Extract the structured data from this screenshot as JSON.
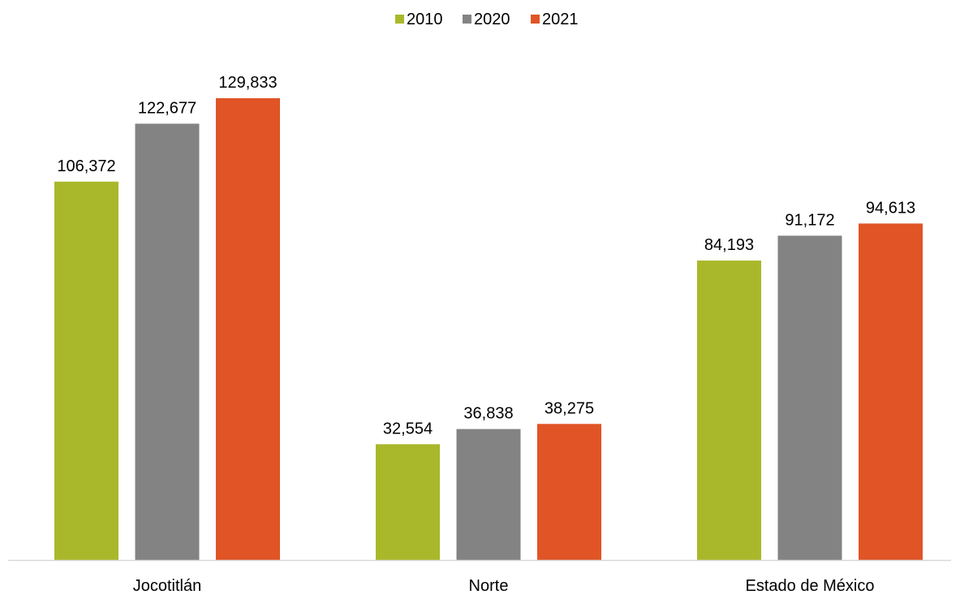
{
  "chart_data": {
    "type": "bar",
    "title": "",
    "xlabel": "",
    "ylabel": "",
    "categories": [
      "Jocotitlán",
      "Norte",
      "Estado de México"
    ],
    "series": [
      {
        "name": "2010",
        "color": "#A9B82A",
        "values": [
          106372,
          32554,
          84193
        ],
        "labels": [
          "106,372",
          "32,554",
          "84,193"
        ]
      },
      {
        "name": "2020",
        "color": "#838383",
        "values": [
          122677,
          36838,
          91172
        ],
        "labels": [
          "122,677",
          "36,838",
          "91,172"
        ]
      },
      {
        "name": "2021",
        "color": "#E05426",
        "values": [
          129833,
          38275,
          94613
        ],
        "labels": [
          "129,833",
          "38,275",
          "94,613"
        ]
      }
    ],
    "ylim": [
      0,
      150000
    ],
    "grid": false,
    "legend_position": "top-center",
    "axis_line_color": "#D9D9D9"
  }
}
